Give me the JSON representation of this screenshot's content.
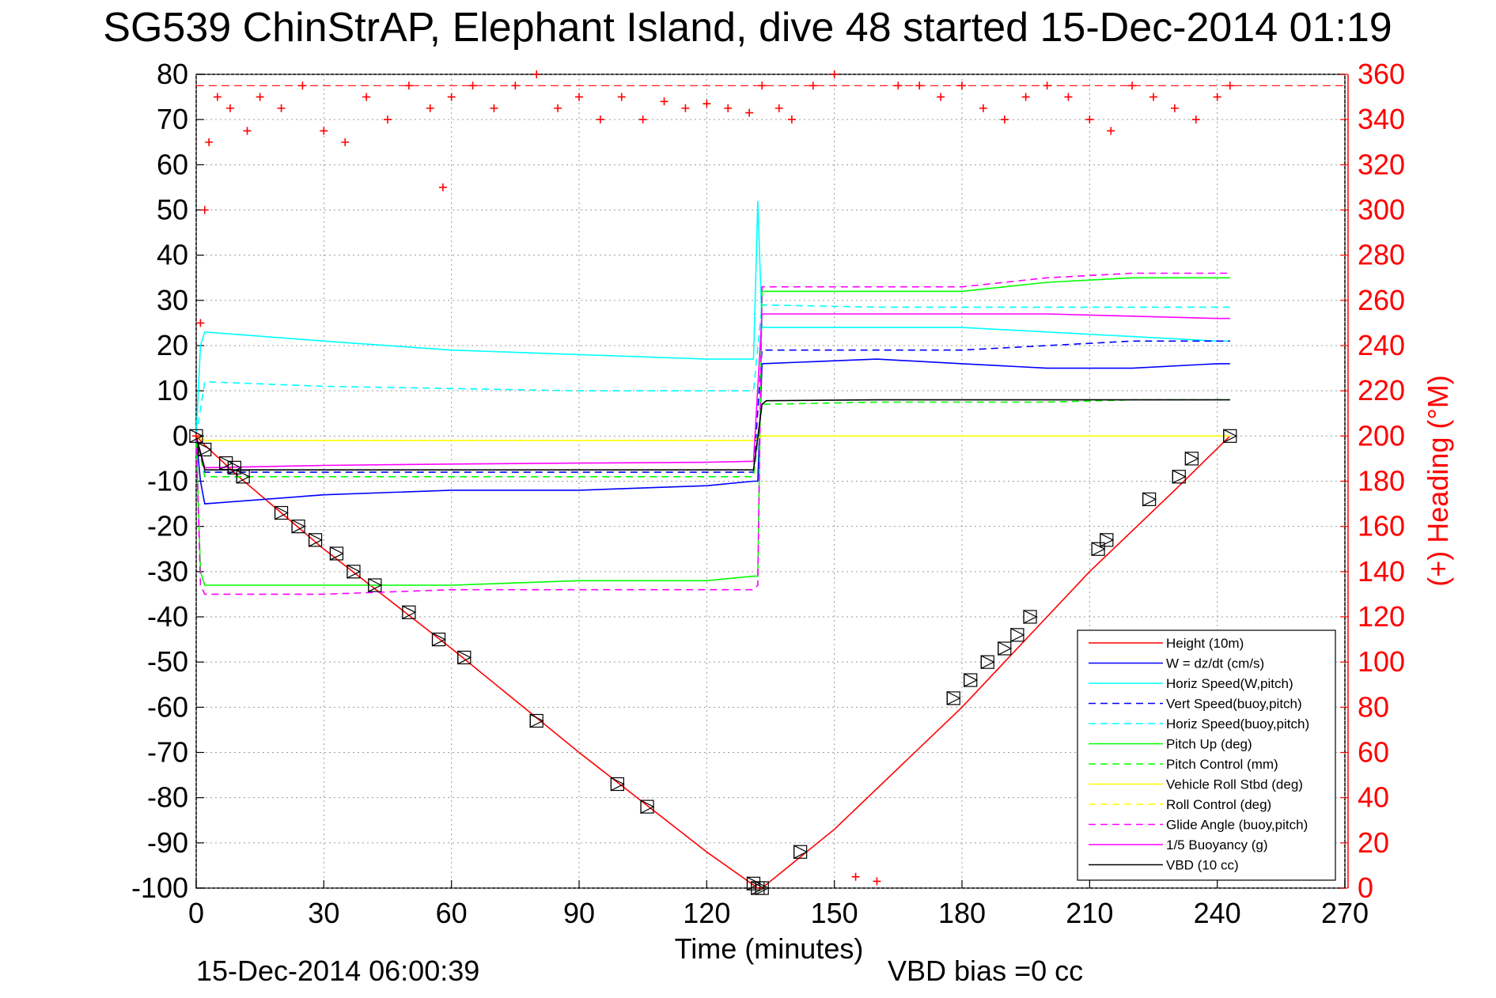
{
  "chart_data": {
    "type": "line",
    "title": "SG539 ChinStrAP, Elephant Island, dive 48 started 15-Dec-2014 01:19",
    "xlabel": "Time (minutes)",
    "ylabel_right": "(+) Heading (°M)",
    "xlim": [
      0,
      270
    ],
    "ylim_left": [
      -100,
      80
    ],
    "ylim_right": [
      0,
      360
    ],
    "xticks": [
      0,
      30,
      60,
      90,
      120,
      150,
      180,
      210,
      240,
      270
    ],
    "yticks_left": [
      80,
      70,
      60,
      50,
      40,
      30,
      20,
      10,
      0,
      -10,
      -20,
      -30,
      -40,
      -50,
      -60,
      -70,
      -80,
      -90,
      -100
    ],
    "yticks_right": [
      360,
      340,
      320,
      300,
      280,
      260,
      240,
      220,
      200,
      180,
      160,
      140,
      120,
      100,
      80,
      60,
      40,
      20,
      0
    ],
    "grid": true,
    "legend_position": "bottom-right",
    "footer_left": "15-Dec-2014 06:00:39",
    "footer_right": "VBD bias =0 cc",
    "heading_reference": 355,
    "series": [
      {
        "name": "Height (10m)",
        "color": "#ff0000",
        "style": "solid",
        "x": [
          0,
          2,
          10,
          30,
          60,
          90,
          120,
          132,
          133,
          150,
          180,
          210,
          230,
          243
        ],
        "y": [
          0,
          -2,
          -9,
          -25,
          -47,
          -70,
          -92,
          -100,
          -100,
          -87,
          -60,
          -30,
          -12,
          0
        ]
      },
      {
        "name": "W = dz/dt (cm/s)",
        "color": "#0000ff",
        "style": "solid",
        "x": [
          0,
          1,
          2,
          30,
          60,
          90,
          120,
          131,
          132,
          133,
          160,
          180,
          200,
          220,
          240,
          243
        ],
        "y": [
          0,
          -10,
          -15,
          -13,
          -12,
          -12,
          -11,
          -10,
          -10,
          16,
          17,
          16,
          15,
          15,
          16,
          16
        ]
      },
      {
        "name": "Horiz Speed(W,pitch)",
        "color": "#00ffff",
        "style": "solid",
        "x": [
          0,
          1,
          2,
          30,
          60,
          90,
          120,
          131,
          132,
          133,
          160,
          180,
          200,
          220,
          240,
          243
        ],
        "y": [
          0,
          20,
          23,
          21,
          19,
          18,
          17,
          17,
          52,
          24,
          24,
          24,
          23,
          22,
          21,
          21
        ]
      },
      {
        "name": "Vert Speed(buoy,pitch)",
        "color": "#0000ff",
        "style": "dashed",
        "x": [
          0,
          2,
          30,
          60,
          90,
          120,
          131,
          133,
          160,
          180,
          200,
          220,
          240,
          243
        ],
        "y": [
          0,
          -8,
          -8,
          -8,
          -8,
          -8,
          -8,
          19,
          19,
          19,
          20,
          21,
          21,
          21
        ]
      },
      {
        "name": "Horiz Speed(buoy,pitch)",
        "color": "#00ffff",
        "style": "dashed",
        "x": [
          0,
          2,
          30,
          60,
          90,
          120,
          131,
          133,
          160,
          180,
          200,
          220,
          240,
          243
        ],
        "y": [
          0,
          12,
          11,
          10.5,
          10,
          10,
          10,
          29,
          28.5,
          28.5,
          28.5,
          28.5,
          28.5,
          28.5
        ]
      },
      {
        "name": "Pitch Up (deg)",
        "color": "#00ff00",
        "style": "solid",
        "x": [
          0,
          1,
          2,
          30,
          60,
          90,
          120,
          131,
          132,
          133,
          160,
          180,
          200,
          220,
          240,
          243
        ],
        "y": [
          0,
          -30,
          -33,
          -33,
          -33,
          -32,
          -32,
          -31,
          -31,
          32,
          32,
          32,
          34,
          35,
          35,
          35
        ]
      },
      {
        "name": "Pitch Control (mm)",
        "color": "#00ff00",
        "style": "dashed",
        "x": [
          0,
          2,
          30,
          60,
          90,
          120,
          131,
          133,
          160,
          180,
          200,
          220,
          240,
          243
        ],
        "y": [
          0,
          -9,
          -9,
          -9,
          -9,
          -9,
          -9,
          7,
          7.5,
          7.5,
          7.5,
          8,
          8,
          8
        ]
      },
      {
        "name": "Vehicle Roll Stbd (deg)",
        "color": "#ffff00",
        "style": "solid",
        "x": [
          0,
          2,
          30,
          60,
          90,
          120,
          131,
          133,
          160,
          180,
          200,
          220,
          240,
          243
        ],
        "y": [
          0,
          -1,
          -1,
          -1,
          -1,
          -1,
          -1,
          0,
          0,
          0,
          0,
          0,
          0,
          0
        ]
      },
      {
        "name": "Roll Control (deg)",
        "color": "#ffff00",
        "style": "dashed",
        "x": [
          0,
          2,
          30,
          60,
          90,
          120,
          131,
          133,
          160,
          180,
          200,
          220,
          240,
          243
        ],
        "y": [
          0,
          -1,
          -1,
          -1,
          -1,
          -1,
          -1,
          0,
          0,
          0,
          0,
          0,
          0,
          0
        ]
      },
      {
        "name": "Glide Angle (buoy,pitch)",
        "color": "#ff00ff",
        "style": "dashed",
        "x": [
          0,
          1,
          2,
          30,
          60,
          90,
          120,
          131,
          132,
          133,
          160,
          180,
          200,
          220,
          240,
          243
        ],
        "y": [
          0,
          -33,
          -35,
          -35,
          -34,
          -34,
          -34,
          -34,
          -33,
          33,
          33,
          33,
          35,
          36,
          36,
          36
        ]
      },
      {
        "name": "1/5 Buoyancy (g)",
        "color": "#ff00ff",
        "style": "solid",
        "x": [
          0,
          2,
          30,
          60,
          90,
          120,
          131,
          133,
          160,
          180,
          200,
          220,
          240,
          243
        ],
        "y": [
          0,
          -7,
          -6.5,
          -6.2,
          -6,
          -5.8,
          -5.6,
          27,
          27,
          27,
          27,
          26.5,
          26,
          26
        ]
      },
      {
        "name": "VBD (10 cc)",
        "color": "#000000",
        "style": "solid",
        "x": [
          0,
          2,
          30,
          60,
          90,
          120,
          131,
          133,
          134,
          160,
          180,
          200,
          220,
          240,
          243
        ],
        "y": [
          0,
          -7.5,
          -7.5,
          -7.5,
          -7.5,
          -7.5,
          -7.5,
          7,
          7.8,
          8,
          8,
          8,
          8,
          8,
          8
        ]
      }
    ],
    "heading_series": {
      "color": "#ff0000",
      "marker": "+",
      "x": [
        0,
        1,
        2,
        3,
        5,
        8,
        12,
        15,
        20,
        25,
        30,
        35,
        40,
        45,
        50,
        55,
        58,
        60,
        65,
        70,
        75,
        80,
        85,
        90,
        95,
        100,
        105,
        110,
        115,
        120,
        125,
        130,
        133,
        137,
        140,
        145,
        150,
        155,
        160,
        165,
        170,
        175,
        180,
        185,
        190,
        195,
        200,
        205,
        210,
        215,
        220,
        225,
        230,
        235,
        240,
        243
      ],
      "y": [
        200,
        250,
        300,
        330,
        350,
        345,
        335,
        350,
        345,
        355,
        335,
        330,
        350,
        340,
        355,
        345,
        310,
        350,
        355,
        345,
        355,
        360,
        345,
        350,
        340,
        350,
        340,
        348,
        345,
        347,
        345,
        343,
        355,
        345,
        340,
        355,
        360,
        5,
        3,
        355,
        355,
        350,
        355,
        345,
        340,
        350,
        355,
        350,
        340,
        335,
        355,
        350,
        345,
        340,
        350,
        355
      ]
    },
    "depth_markers": {
      "style": "triangle-box",
      "color": "#000000",
      "x": [
        0,
        2,
        7,
        9,
        11,
        20,
        24,
        28,
        33,
        37,
        42,
        50,
        57,
        63,
        80,
        99,
        106,
        131,
        132,
        133,
        142,
        178,
        182,
        186,
        190,
        193,
        196,
        212,
        214,
        224,
        231,
        234,
        243
      ],
      "y": [
        0,
        -3,
        -6,
        -7,
        -9,
        -17,
        -20,
        -23,
        -26,
        -30,
        -33,
        -39,
        -45,
        -49,
        -63,
        -77,
        -82,
        -99,
        -100,
        -100,
        -92,
        -58,
        -54,
        -50,
        -47,
        -44,
        -40,
        -25,
        -23,
        -14,
        -9,
        -5,
        0
      ]
    }
  }
}
